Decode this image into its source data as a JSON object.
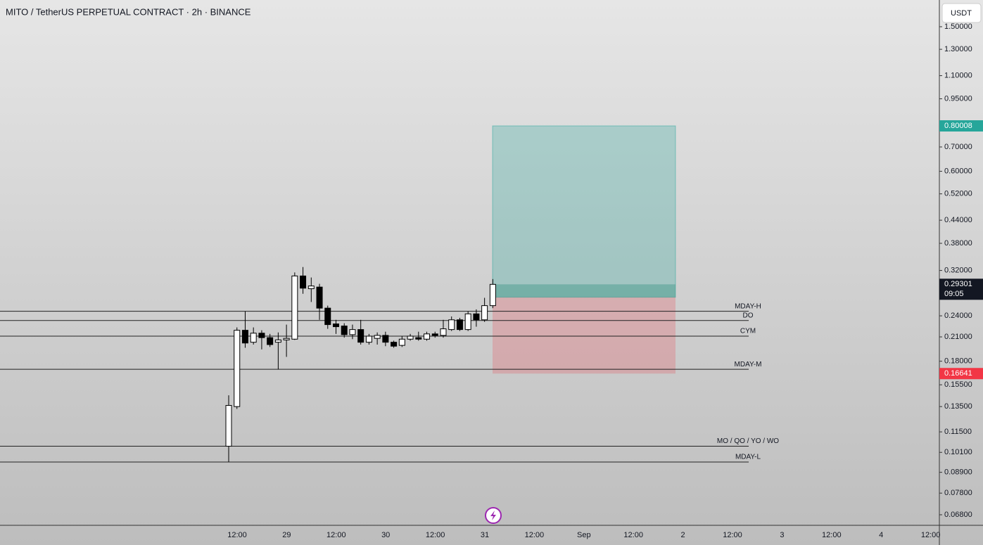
{
  "chart_data": {
    "type": "candlestick",
    "title": "MITO / TetherUS PERPETUAL CONTRACT · 2h · BINANCE",
    "currency": "USDT",
    "log_scale": true,
    "ylim": [
      0.0636,
      1.777
    ],
    "yticks": [
      {
        "value": 1.5,
        "label": "1.50000"
      },
      {
        "value": 1.3,
        "label": "1.30000"
      },
      {
        "value": 1.1,
        "label": "1.10000"
      },
      {
        "value": 0.95,
        "label": "0.95000"
      },
      {
        "value": 0.7,
        "label": "0.70000"
      },
      {
        "value": 0.6,
        "label": "0.60000"
      },
      {
        "value": 0.52,
        "label": "0.52000"
      },
      {
        "value": 0.44,
        "label": "0.44000"
      },
      {
        "value": 0.38,
        "label": "0.38000"
      },
      {
        "value": 0.32,
        "label": "0.32000"
      },
      {
        "value": 0.24,
        "label": "0.24000"
      },
      {
        "value": 0.21,
        "label": "0.21000"
      },
      {
        "value": 0.18,
        "label": "0.18000"
      },
      {
        "value": 0.155,
        "label": "0.15500"
      },
      {
        "value": 0.135,
        "label": "0.13500"
      },
      {
        "value": 0.115,
        "label": "0.11500"
      },
      {
        "value": 0.101,
        "label": "0.10100"
      },
      {
        "value": 0.089,
        "label": "0.08900"
      },
      {
        "value": 0.078,
        "label": "0.07800"
      },
      {
        "value": 0.068,
        "label": "0.06800"
      }
    ],
    "x_labels": [
      "12:00",
      "29",
      "12:00",
      "30",
      "12:00",
      "31",
      "12:00",
      "Sep",
      "12:00",
      "2",
      "12:00",
      "3",
      "12:00",
      "4",
      "12:00"
    ],
    "open": [
      0.105,
      0.135,
      0.219,
      0.203,
      0.215,
      0.209,
      0.203,
      0.206,
      0.207,
      0.309,
      0.285,
      0.288,
      0.252,
      0.228,
      0.225,
      0.213,
      0.22,
      0.203,
      0.208,
      0.212,
      0.203,
      0.199,
      0.207,
      0.209,
      0.207,
      0.214,
      0.212,
      0.22,
      0.234,
      0.22,
      0.243,
      0.234,
      0.256
    ],
    "high": [
      0.145,
      0.223,
      0.247,
      0.223,
      0.219,
      0.214,
      0.216,
      0.227,
      0.316,
      0.327,
      0.306,
      0.294,
      0.256,
      0.234,
      0.229,
      0.227,
      0.234,
      0.214,
      0.216,
      0.217,
      0.205,
      0.211,
      0.214,
      0.217,
      0.217,
      0.217,
      0.234,
      0.239,
      0.237,
      0.247,
      0.25,
      0.269,
      0.303
    ],
    "low": [
      0.095,
      0.133,
      0.196,
      0.2,
      0.194,
      0.197,
      0.171,
      0.185,
      0.206,
      0.276,
      0.262,
      0.234,
      0.221,
      0.214,
      0.209,
      0.207,
      0.2,
      0.2,
      0.2,
      0.198,
      0.196,
      0.197,
      0.205,
      0.205,
      0.205,
      0.209,
      0.209,
      0.218,
      0.218,
      0.218,
      0.224,
      0.231,
      0.252
    ],
    "close": [
      0.136,
      0.219,
      0.202,
      0.215,
      0.209,
      0.2,
      0.206,
      0.208,
      0.309,
      0.286,
      0.29,
      0.252,
      0.227,
      0.224,
      0.213,
      0.22,
      0.203,
      0.211,
      0.212,
      0.203,
      0.198,
      0.207,
      0.211,
      0.207,
      0.214,
      0.212,
      0.221,
      0.234,
      0.22,
      0.243,
      0.234,
      0.256,
      0.293
    ],
    "levels": [
      {
        "name": "MDAY-H",
        "value": 0.247
      },
      {
        "name": "DO",
        "value": 0.233
      },
      {
        "name": "CYM",
        "value": 0.211
      },
      {
        "name": "MDAY-M",
        "value": 0.171
      },
      {
        "name": "MO / QO / YO / WO",
        "value": 0.105
      },
      {
        "name": "MDAY-L",
        "value": 0.095
      }
    ],
    "position": {
      "target": 0.80008,
      "entry": 0.27,
      "stop": 0.16641
    },
    "last_price": 0.29301,
    "countdown": "09:05"
  }
}
